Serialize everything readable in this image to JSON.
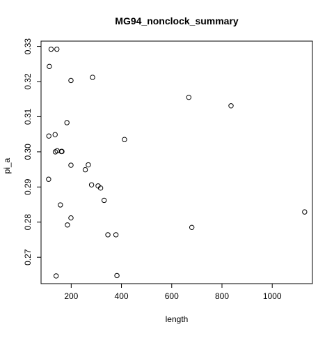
{
  "chart_data": {
    "type": "scatter",
    "title": "MG94_nonclock_summary",
    "xlabel": "length",
    "ylabel": "pi_a",
    "xlim": [
      80,
      1160
    ],
    "ylim": [
      0.2625,
      0.3315
    ],
    "x_ticks": [
      200,
      400,
      600,
      800,
      1000
    ],
    "y_ticks": [
      0.27,
      0.28,
      0.29,
      0.3,
      0.31,
      0.32,
      0.33
    ],
    "x_tick_labels": [
      "200",
      "400",
      "600",
      "800",
      "1000"
    ],
    "y_tick_labels": [
      "0.27",
      "0.28",
      "0.29",
      "0.30",
      "0.31",
      "0.32",
      "0.33"
    ],
    "grid": false,
    "marker": "open-circle",
    "series": [
      {
        "points": [
          {
            "x": 120,
            "y": 0.3292
          },
          {
            "x": 143,
            "y": 0.3292
          },
          {
            "x": 113,
            "y": 0.3243
          },
          {
            "x": 199,
            "y": 0.3203
          },
          {
            "x": 285,
            "y": 0.3212
          },
          {
            "x": 668,
            "y": 0.3155
          },
          {
            "x": 836,
            "y": 0.3131
          },
          {
            "x": 183,
            "y": 0.3083
          },
          {
            "x": 111,
            "y": 0.3045
          },
          {
            "x": 136,
            "y": 0.3049
          },
          {
            "x": 412,
            "y": 0.3035
          },
          {
            "x": 137,
            "y": 0.3
          },
          {
            "x": 144,
            "y": 0.3003
          },
          {
            "x": 161,
            "y": 0.3001
          },
          {
            "x": 163,
            "y": 0.3001
          },
          {
            "x": 199,
            "y": 0.2962
          },
          {
            "x": 268,
            "y": 0.2963
          },
          {
            "x": 256,
            "y": 0.2949
          },
          {
            "x": 110,
            "y": 0.2922
          },
          {
            "x": 281,
            "y": 0.2906
          },
          {
            "x": 307,
            "y": 0.2903
          },
          {
            "x": 317,
            "y": 0.2897
          },
          {
            "x": 331,
            "y": 0.2862
          },
          {
            "x": 157,
            "y": 0.2849
          },
          {
            "x": 1129,
            "y": 0.2829
          },
          {
            "x": 199,
            "y": 0.2812
          },
          {
            "x": 185,
            "y": 0.2792
          },
          {
            "x": 680,
            "y": 0.2785
          },
          {
            "x": 346,
            "y": 0.2764
          },
          {
            "x": 378,
            "y": 0.2764
          },
          {
            "x": 140,
            "y": 0.2647
          },
          {
            "x": 382,
            "y": 0.2648
          }
        ]
      }
    ]
  }
}
